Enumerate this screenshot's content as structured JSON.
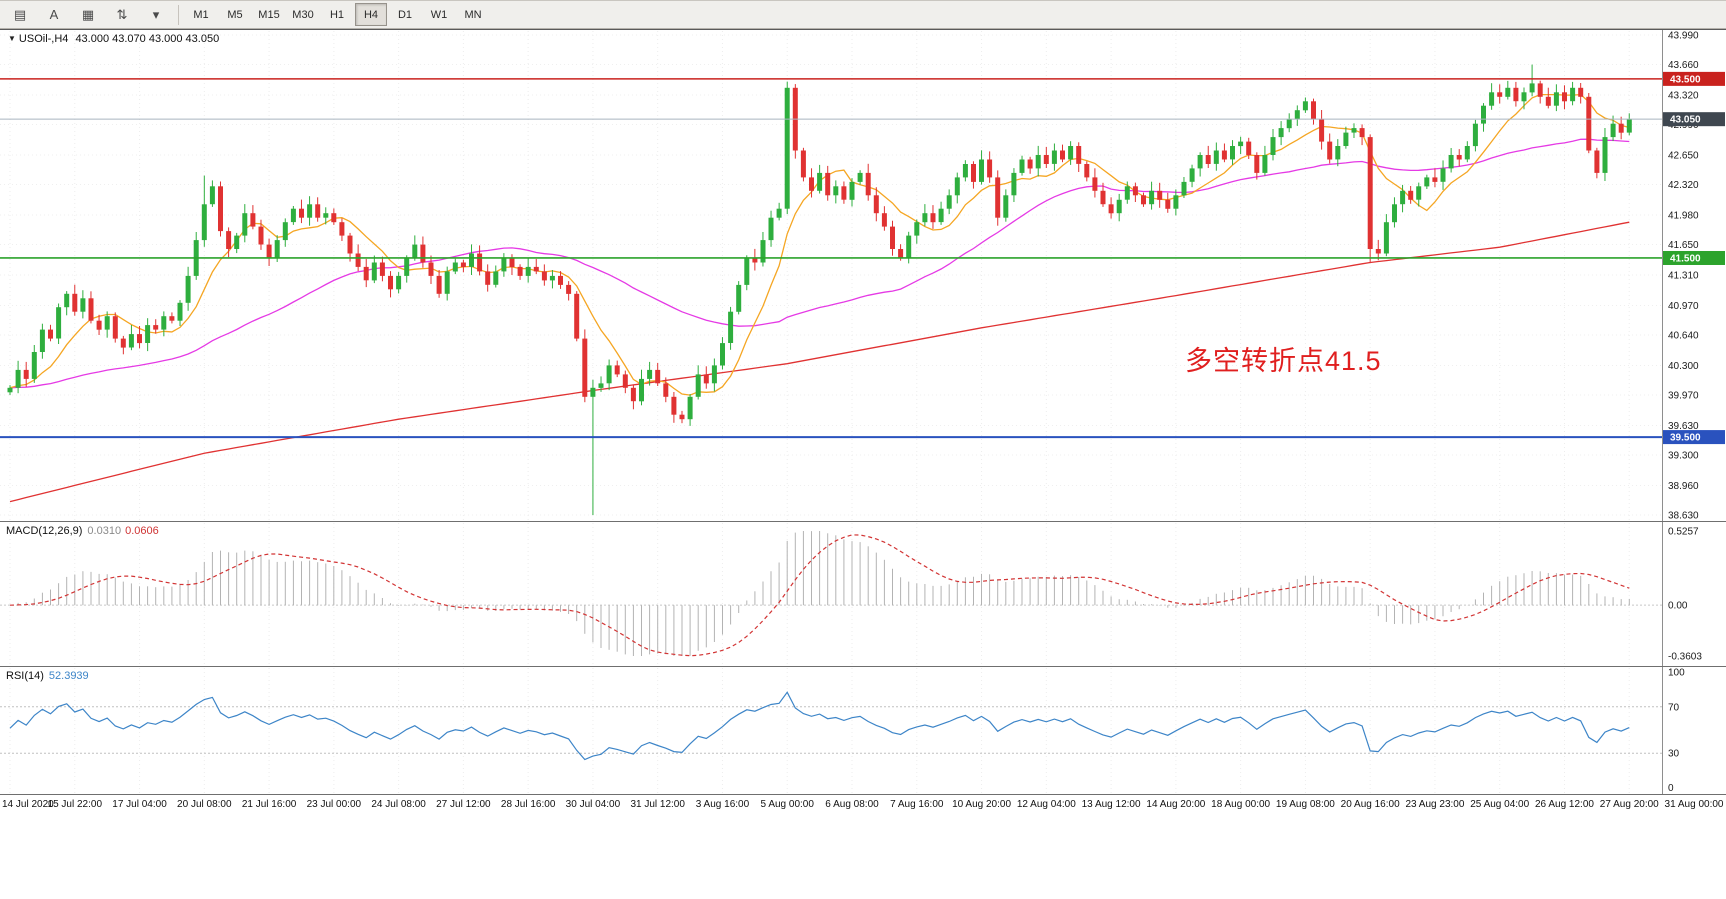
{
  "toolbar": {
    "icons": [
      {
        "name": "window-layout-icon",
        "glyph": "▤"
      },
      {
        "name": "text-tool-icon",
        "glyph": "A"
      },
      {
        "name": "chart-template-icon",
        "glyph": "▦"
      },
      {
        "name": "arrange-charts-icon",
        "glyph": "⇅"
      },
      {
        "name": "dropdown-caret-icon",
        "glyph": "▾"
      }
    ],
    "timeframes": [
      {
        "label": "M1",
        "active": false
      },
      {
        "label": "M5",
        "active": false
      },
      {
        "label": "M15",
        "active": false
      },
      {
        "label": "M30",
        "active": false
      },
      {
        "label": "H1",
        "active": false
      },
      {
        "label": "H4",
        "active": true
      },
      {
        "label": "D1",
        "active": false
      },
      {
        "label": "W1",
        "active": false
      },
      {
        "label": "MN",
        "active": false
      }
    ]
  },
  "chart": {
    "symbol_marker": "▼",
    "symbol_label": "USOil-,H4",
    "quote_values": "43.000 43.070 43.000 43.050",
    "annotation": {
      "text": "多空转折点41.5",
      "color": "#e01f1f"
    },
    "price_max": 43.99,
    "price_min": 38.63,
    "y_ticks": [
      "43.990",
      "43.660",
      "43.320",
      "42.990",
      "42.650",
      "42.320",
      "41.980",
      "41.650",
      "41.310",
      "40.970",
      "40.640",
      "40.300",
      "39.970",
      "39.630",
      "39.300",
      "38.960",
      "38.630"
    ],
    "levels": [
      {
        "value": 43.5,
        "label": "43.500",
        "color": "#c9221e",
        "line_color": "#c9221e",
        "width": 1.4
      },
      {
        "value": 43.05,
        "label": "43.050",
        "color": "#3f4750",
        "line_color": "#a9b4bf",
        "width": 1
      },
      {
        "value": 41.5,
        "label": "41.500",
        "color": "#2ca32c",
        "line_color": "#2ca32c",
        "width": 1.6
      },
      {
        "value": 39.5,
        "label": "39.500",
        "color": "#2a52be",
        "line_color": "#2a52be",
        "width": 2
      }
    ],
    "colors": {
      "up": "#2eae3e",
      "down": "#e03232",
      "ma_fast": "#f5a623",
      "ma_mid": "#e53ae5",
      "ma_slow": "#e03232"
    }
  },
  "chart_data": {
    "type": "candlestick",
    "title": "USOil- H4",
    "open_first": 40.0,
    "closes": [
      40.05,
      40.25,
      40.15,
      40.45,
      40.7,
      40.6,
      40.95,
      41.1,
      40.9,
      41.05,
      40.8,
      40.7,
      40.85,
      40.6,
      40.5,
      40.65,
      40.55,
      40.75,
      40.7,
      40.85,
      40.8,
      41.0,
      41.3,
      41.7,
      42.1,
      42.3,
      41.8,
      41.6,
      41.75,
      42.0,
      41.85,
      41.65,
      41.5,
      41.7,
      41.9,
      42.05,
      41.95,
      42.1,
      41.95,
      42.0,
      41.9,
      41.75,
      41.55,
      41.4,
      41.25,
      41.45,
      41.3,
      41.15,
      41.3,
      41.5,
      41.65,
      41.45,
      41.3,
      41.1,
      41.35,
      41.45,
      41.4,
      41.55,
      41.35,
      41.2,
      41.35,
      41.5,
      41.4,
      41.3,
      41.4,
      41.35,
      41.25,
      41.3,
      41.2,
      41.1,
      40.6,
      39.95,
      40.05,
      40.1,
      40.3,
      40.2,
      40.05,
      39.9,
      40.15,
      40.25,
      40.1,
      39.95,
      39.75,
      39.7,
      39.95,
      40.2,
      40.1,
      40.3,
      40.55,
      40.9,
      41.2,
      41.5,
      41.45,
      41.7,
      41.95,
      42.05,
      43.4,
      42.7,
      42.4,
      42.25,
      42.45,
      42.2,
      42.3,
      42.15,
      42.35,
      42.45,
      42.2,
      42.0,
      41.85,
      41.6,
      41.5,
      41.75,
      41.9,
      42.0,
      41.9,
      42.05,
      42.2,
      42.4,
      42.55,
      42.35,
      42.6,
      42.4,
      41.95,
      42.2,
      42.45,
      42.6,
      42.5,
      42.65,
      42.55,
      42.7,
      42.6,
      42.75,
      42.55,
      42.4,
      42.25,
      42.1,
      42.0,
      42.15,
      42.3,
      42.2,
      42.1,
      42.25,
      42.15,
      42.05,
      42.2,
      42.35,
      42.5,
      42.65,
      42.55,
      42.7,
      42.6,
      42.75,
      42.8,
      42.65,
      42.45,
      42.65,
      42.85,
      42.95,
      43.05,
      43.15,
      43.25,
      43.05,
      42.8,
      42.6,
      42.75,
      42.9,
      42.95,
      42.85,
      41.6,
      41.55,
      41.9,
      42.1,
      42.25,
      42.15,
      42.3,
      42.4,
      42.35,
      42.5,
      42.65,
      42.6,
      42.75,
      43.0,
      43.2,
      43.35,
      43.3,
      43.4,
      43.25,
      43.35,
      43.45,
      43.3,
      43.2,
      43.35,
      43.25,
      43.4,
      43.3,
      42.7,
      42.45,
      42.85,
      43.0,
      42.9,
      43.05
    ],
    "wick_overrides": [
      {
        "i": 24,
        "high": 42.42
      },
      {
        "i": 72,
        "low": 38.63
      },
      {
        "i": 96,
        "high": 43.47
      },
      {
        "i": 168,
        "low": 41.45
      },
      {
        "i": 188,
        "high": 43.66
      }
    ],
    "ma_fast_period": 8,
    "ma_mid_period": 40,
    "ma_slow_waypoints": [
      [
        0,
        38.78
      ],
      [
        24,
        39.32
      ],
      [
        48,
        39.7
      ],
      [
        72,
        40.02
      ],
      [
        96,
        40.32
      ],
      [
        120,
        40.72
      ],
      [
        144,
        41.08
      ],
      [
        168,
        41.45
      ],
      [
        184,
        41.62
      ],
      [
        200,
        41.9
      ]
    ],
    "bars_per_label": 8,
    "time_labels": [
      "14 Jul 2020",
      "15 Jul 22:00",
      "17 Jul 04:00",
      "20 Jul 08:00",
      "21 Jul 16:00",
      "23 Jul 00:00",
      "24 Jul 08:00",
      "27 Jul 12:00",
      "28 Jul 16:00",
      "30 Jul 04:00",
      "31 Jul 12:00",
      "3 Aug 16:00",
      "5 Aug 00:00",
      "6 Aug 08:00",
      "7 Aug 16:00",
      "10 Aug 20:00",
      "12 Aug 04:00",
      "13 Aug 12:00",
      "14 Aug 20:00",
      "18 Aug 00:00",
      "19 Aug 08:00",
      "20 Aug 16:00",
      "23 Aug 23:00",
      "25 Aug 04:00",
      "26 Aug 12:00",
      "27 Aug 20:00",
      "31 Aug 00:00"
    ]
  },
  "macd": {
    "title": "MACD(12,26,9)",
    "value_main": "0.0310",
    "value_signal": "0.0606",
    "fast": 12,
    "slow": 26,
    "signal_period": 9,
    "scale_max": 0.5257,
    "scale_min": -0.3603,
    "axis": [
      {
        "label": "0.5257",
        "value": 0.5257
      },
      {
        "label": "0.00",
        "value": 0
      },
      {
        "label": "-0.3603",
        "value": -0.3603
      }
    ],
    "histogram_color": "#b3b3b3",
    "signal_color": "#d23434"
  },
  "rsi": {
    "title": "RSI(14)",
    "value": "52.3939",
    "period": 14,
    "line_color": "#3d85c8",
    "levels": [
      70,
      30
    ],
    "axis": [
      {
        "label": "100",
        "value": 100
      },
      {
        "label": "70",
        "value": 70
      },
      {
        "label": "30",
        "value": 30
      },
      {
        "label": "0",
        "value": 0
      }
    ]
  }
}
